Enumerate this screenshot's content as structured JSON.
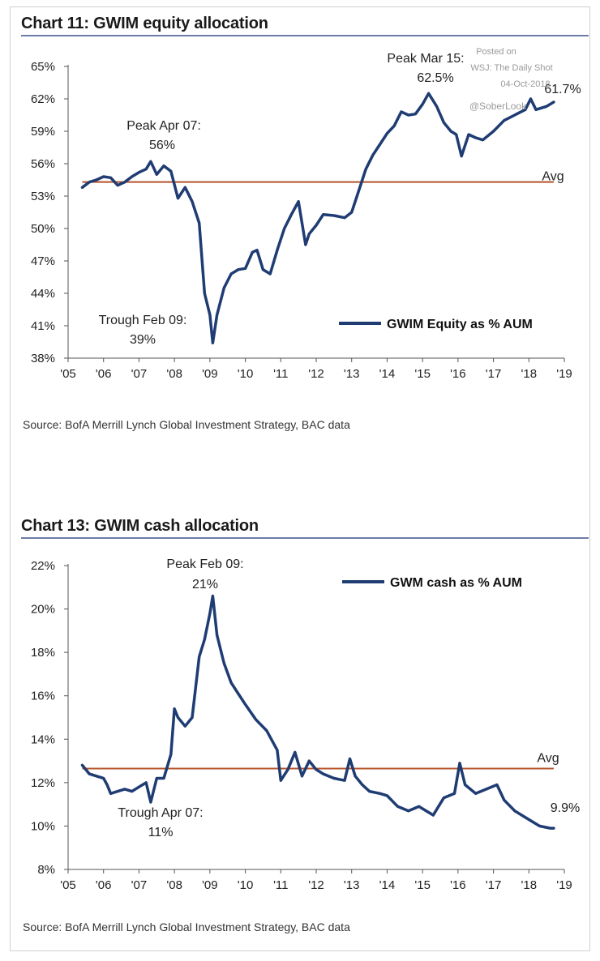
{
  "charts": [
    {
      "title": "Chart 11: GWIM equity allocation",
      "source": "Source:  BofA Merrill Lynch Global Investment Strategy, BAC data",
      "legend": "GWIM Equity as % AUM",
      "avg_label": "Avg",
      "annotations": {
        "peak_2007": [
          "Peak Apr 07:",
          "56%"
        ],
        "trough_2009": [
          "Trough Feb 09:",
          "39%"
        ],
        "peak_2015": [
          "Peak Mar 15:",
          "62.5%"
        ],
        "last": "61.7%"
      },
      "watermark": [
        "Posted on",
        "WSJ: The Daily Shot",
        "04-Oct-2018",
        "@SoberLook"
      ]
    },
    {
      "title": "Chart 13: GWIM cash allocation",
      "source": "Source:  BofA Merrill Lynch Global Investment Strategy, BAC data",
      "legend": "GWM cash as % AUM",
      "avg_label": "Avg",
      "annotations": {
        "peak_2009": [
          "Peak Feb 09:",
          "21%"
        ],
        "trough_2007": [
          "Trough Apr 07:",
          "11%"
        ],
        "last": "9.9%"
      }
    }
  ],
  "chart_data": [
    {
      "type": "line",
      "title": "Chart 11: GWIM equity allocation",
      "xlabel": "",
      "ylabel": "",
      "x_ticks": [
        "'05",
        "'06",
        "'07",
        "'08",
        "'09",
        "'10",
        "'11",
        "'12",
        "'13",
        "'14",
        "'15",
        "'16",
        "'17",
        "'18",
        "'19"
      ],
      "y_ticks": [
        "38%",
        "41%",
        "44%",
        "47%",
        "50%",
        "53%",
        "56%",
        "59%",
        "62%",
        "65%"
      ],
      "xlim": [
        2005,
        2019
      ],
      "ylim": [
        38,
        65
      ],
      "avg": 54.3,
      "color": "#1f3c73",
      "avg_color": "#b5532b",
      "series": [
        {
          "name": "GWIM Equity as % AUM",
          "x": [
            2005.4,
            2005.6,
            2005.8,
            2006.0,
            2006.2,
            2006.4,
            2006.6,
            2006.8,
            2007.0,
            2007.2,
            2007.33,
            2007.5,
            2007.7,
            2007.9,
            2008.1,
            2008.3,
            2008.5,
            2008.7,
            2008.85,
            2009.0,
            2009.08,
            2009.2,
            2009.4,
            2009.6,
            2009.8,
            2010.0,
            2010.2,
            2010.33,
            2010.5,
            2010.7,
            2010.9,
            2011.1,
            2011.3,
            2011.5,
            2011.7,
            2011.8,
            2012.0,
            2012.2,
            2012.5,
            2012.8,
            2013.0,
            2013.2,
            2013.4,
            2013.6,
            2013.8,
            2014.0,
            2014.2,
            2014.4,
            2014.6,
            2014.8,
            2015.0,
            2015.17,
            2015.4,
            2015.6,
            2015.8,
            2015.95,
            2016.1,
            2016.3,
            2016.5,
            2016.7,
            2017.0,
            2017.3,
            2017.6,
            2017.9,
            2018.05,
            2018.2,
            2018.5,
            2018.7
          ],
          "y": [
            53.8,
            54.3,
            54.5,
            54.8,
            54.7,
            54.0,
            54.3,
            54.8,
            55.2,
            55.5,
            56.2,
            55.0,
            55.8,
            55.3,
            52.8,
            53.8,
            52.5,
            50.5,
            44.0,
            42.0,
            39.4,
            42.0,
            44.5,
            45.8,
            46.2,
            46.3,
            47.8,
            48.0,
            46.2,
            45.8,
            48.0,
            50.0,
            51.3,
            52.5,
            48.5,
            49.5,
            50.3,
            51.3,
            51.2,
            51.0,
            51.5,
            53.5,
            55.5,
            56.8,
            57.8,
            58.8,
            59.5,
            60.8,
            60.5,
            60.6,
            61.5,
            62.5,
            61.3,
            59.8,
            59.0,
            58.7,
            56.7,
            58.7,
            58.4,
            58.2,
            59.0,
            60.0,
            60.5,
            61.0,
            62.0,
            61.0,
            61.3,
            61.7
          ]
        }
      ]
    },
    {
      "type": "line",
      "title": "Chart 13: GWIM cash allocation",
      "xlabel": "",
      "ylabel": "",
      "x_ticks": [
        "'05",
        "'06",
        "'07",
        "'08",
        "'09",
        "'10",
        "'11",
        "'12",
        "'13",
        "'14",
        "'15",
        "'16",
        "'17",
        "'18",
        "'19"
      ],
      "y_ticks": [
        "8%",
        "10%",
        "12%",
        "14%",
        "16%",
        "18%",
        "20%",
        "22%"
      ],
      "xlim": [
        2005,
        2019
      ],
      "ylim": [
        8,
        22
      ],
      "avg": 12.65,
      "color": "#1f3c73",
      "avg_color": "#b5532b",
      "series": [
        {
          "name": "GWM cash as % AUM",
          "x": [
            2005.4,
            2005.6,
            2005.8,
            2006.0,
            2006.1,
            2006.2,
            2006.4,
            2006.6,
            2006.8,
            2007.0,
            2007.2,
            2007.33,
            2007.5,
            2007.7,
            2007.9,
            2008.0,
            2008.1,
            2008.3,
            2008.5,
            2008.7,
            2008.85,
            2009.0,
            2009.08,
            2009.2,
            2009.4,
            2009.6,
            2009.8,
            2010.0,
            2010.3,
            2010.6,
            2010.9,
            2011.0,
            2011.2,
            2011.4,
            2011.6,
            2011.8,
            2012.0,
            2012.2,
            2012.5,
            2012.8,
            2012.95,
            2013.1,
            2013.3,
            2013.5,
            2013.8,
            2014.0,
            2014.3,
            2014.6,
            2014.9,
            2015.0,
            2015.3,
            2015.6,
            2015.9,
            2016.05,
            2016.2,
            2016.5,
            2016.8,
            2017.1,
            2017.3,
            2017.6,
            2017.9,
            2018.1,
            2018.3,
            2018.6,
            2018.7
          ],
          "y": [
            12.8,
            12.4,
            12.3,
            12.2,
            11.9,
            11.5,
            11.6,
            11.7,
            11.6,
            11.8,
            12.0,
            11.1,
            12.2,
            12.2,
            13.3,
            15.4,
            15.0,
            14.6,
            15.0,
            17.8,
            18.6,
            19.8,
            20.6,
            18.8,
            17.5,
            16.6,
            16.1,
            15.6,
            14.9,
            14.4,
            13.5,
            12.1,
            12.6,
            13.4,
            12.3,
            13.0,
            12.6,
            12.4,
            12.2,
            12.1,
            13.1,
            12.3,
            11.9,
            11.6,
            11.5,
            11.4,
            10.9,
            10.7,
            10.9,
            10.8,
            10.5,
            11.3,
            11.5,
            12.9,
            11.9,
            11.5,
            11.7,
            11.9,
            11.2,
            10.7,
            10.4,
            10.2,
            10.0,
            9.9,
            9.9
          ]
        }
      ]
    }
  ]
}
